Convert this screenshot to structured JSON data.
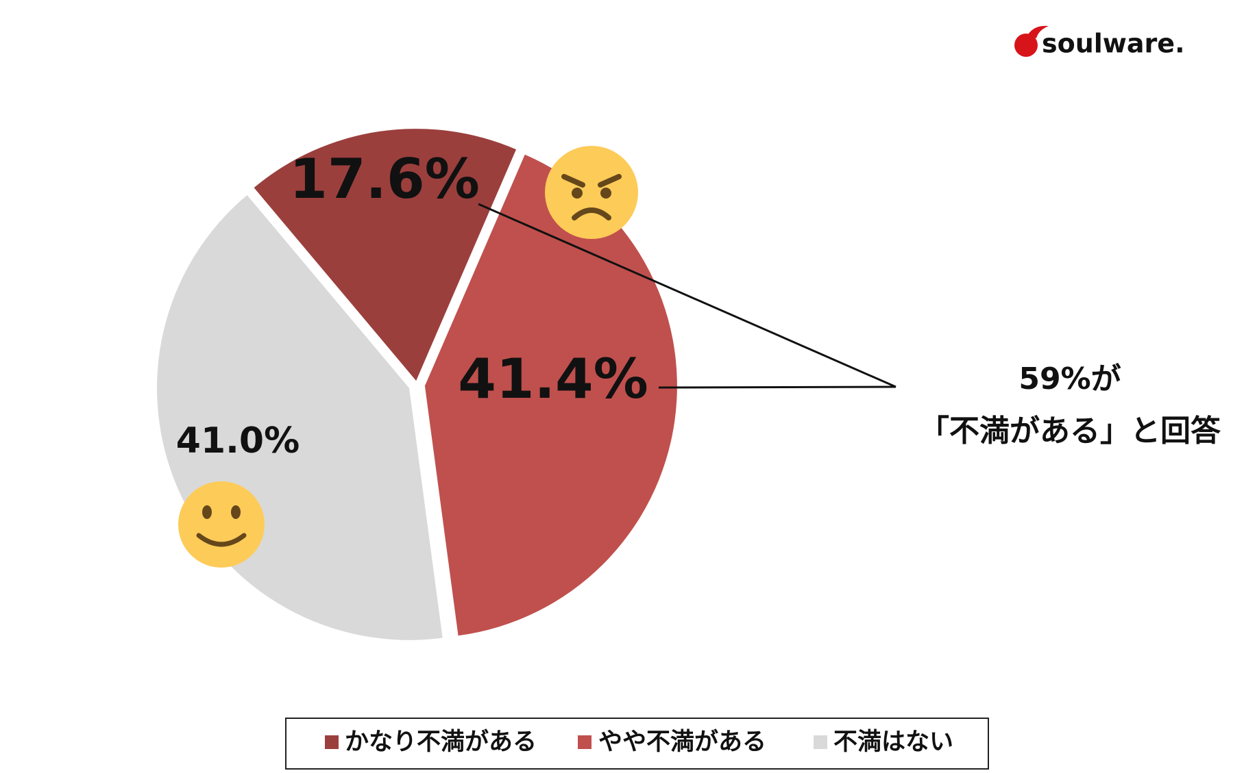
{
  "brand": "soulware.",
  "chart_data": {
    "type": "pie",
    "categories": [
      "かなり不満がある",
      "やや不満がある",
      "不満はない"
    ],
    "values": [
      17.6,
      41.4,
      41.0
    ],
    "value_labels": [
      "17.6%",
      "41.4%",
      "41.0%"
    ],
    "colors": [
      "#9b3f3d",
      "#c0504d",
      "#d9d9d9"
    ],
    "annotation": [
      "59%が",
      "「不満がある」と回答"
    ],
    "legend": "bottom"
  }
}
